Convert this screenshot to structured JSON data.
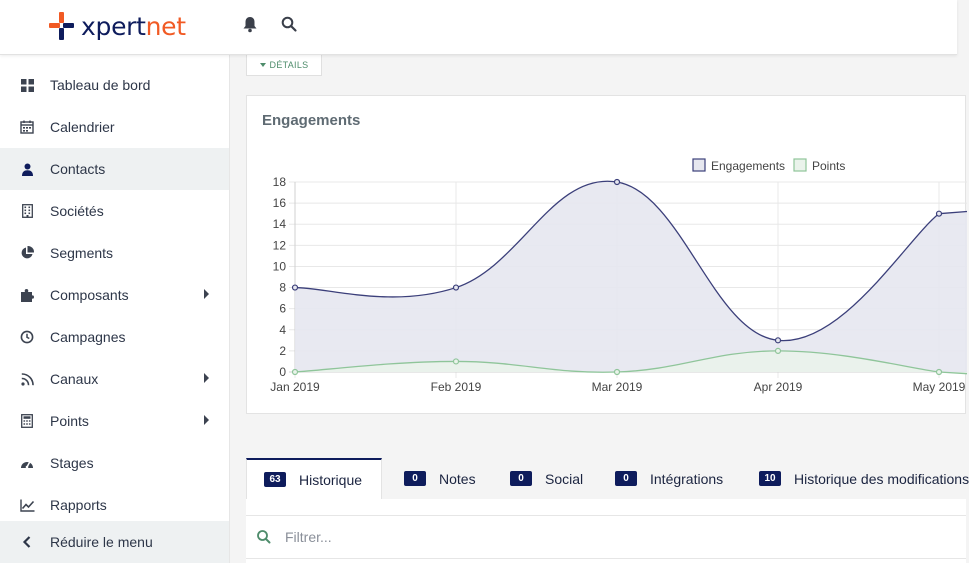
{
  "brand": {
    "logo_prefix": "xpert",
    "logo_suffix": "net",
    "primary_color": "#0e1c5c",
    "accent_color": "#f15a24"
  },
  "topbar": {
    "icons": [
      "bell-icon",
      "search-icon"
    ]
  },
  "sidebar": {
    "items": [
      {
        "label": "Tableau de bord",
        "icon": "dashboard-icon"
      },
      {
        "label": "Calendrier",
        "icon": "calendar-icon"
      },
      {
        "label": "Contacts",
        "icon": "user-icon"
      },
      {
        "label": "Sociétés",
        "icon": "building-icon"
      },
      {
        "label": "Segments",
        "icon": "pie-chart-icon"
      },
      {
        "label": "Composants",
        "icon": "puzzle-icon"
      },
      {
        "label": "Campagnes",
        "icon": "clock-icon"
      },
      {
        "label": "Canaux",
        "icon": "rss-icon"
      },
      {
        "label": "Points",
        "icon": "calculator-icon"
      },
      {
        "label": "Stages",
        "icon": "tachometer-icon"
      },
      {
        "label": "Rapports",
        "icon": "line-chart-icon"
      }
    ],
    "active": "Contacts",
    "reduce_label": "Réduire le menu"
  },
  "details_button": "DÉTAILS",
  "card": {
    "title": "Engagements"
  },
  "chart_data": {
    "type": "line",
    "x": [
      "Jan 2019",
      "Feb 2019",
      "Mar 2019",
      "Apr 2019",
      "May 2019"
    ],
    "series": [
      {
        "name": "Engagements",
        "values": [
          8,
          8,
          18,
          3,
          15
        ],
        "color": "#3b3f7a",
        "fill": "#e6e7ef"
      },
      {
        "name": "Points",
        "values": [
          0,
          1,
          0,
          2,
          0
        ],
        "color": "#8fc59a",
        "fill": "#eaf3eb"
      }
    ],
    "yticks": [
      0,
      2,
      4,
      6,
      8,
      10,
      12,
      14,
      16,
      18
    ],
    "ylim": [
      0,
      18
    ],
    "grid": true,
    "legend": "top"
  },
  "tabs": [
    {
      "count": "63",
      "label": "Historique"
    },
    {
      "count": "0",
      "label": "Notes"
    },
    {
      "count": "0",
      "label": "Social"
    },
    {
      "count": "0",
      "label": "Intégrations"
    },
    {
      "count": "10",
      "label": "Historique des modifications"
    }
  ],
  "filter": {
    "placeholder": "Filtrer..."
  }
}
